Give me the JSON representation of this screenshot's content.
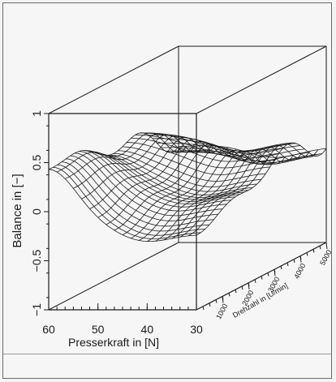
{
  "chart_data": {
    "type": "surface3d",
    "title": "",
    "zlabel": "Balance in [−]",
    "xlabel": "Presserkraft in [N]",
    "ylabel": "Drehzahl in [U/min]",
    "z_ticks": [
      "−1",
      "−0.5",
      "0",
      "0.5",
      "1"
    ],
    "x_ticks": [
      "60",
      "50",
      "40",
      "30"
    ],
    "y_ticks": [
      "1000",
      "2000",
      "3000",
      "4000",
      "5000"
    ],
    "z_range": [
      -1,
      1
    ],
    "x_range": [
      60,
      30
    ],
    "y_range": [
      0,
      5000
    ],
    "surface_color": "#1a1a1a"
  }
}
